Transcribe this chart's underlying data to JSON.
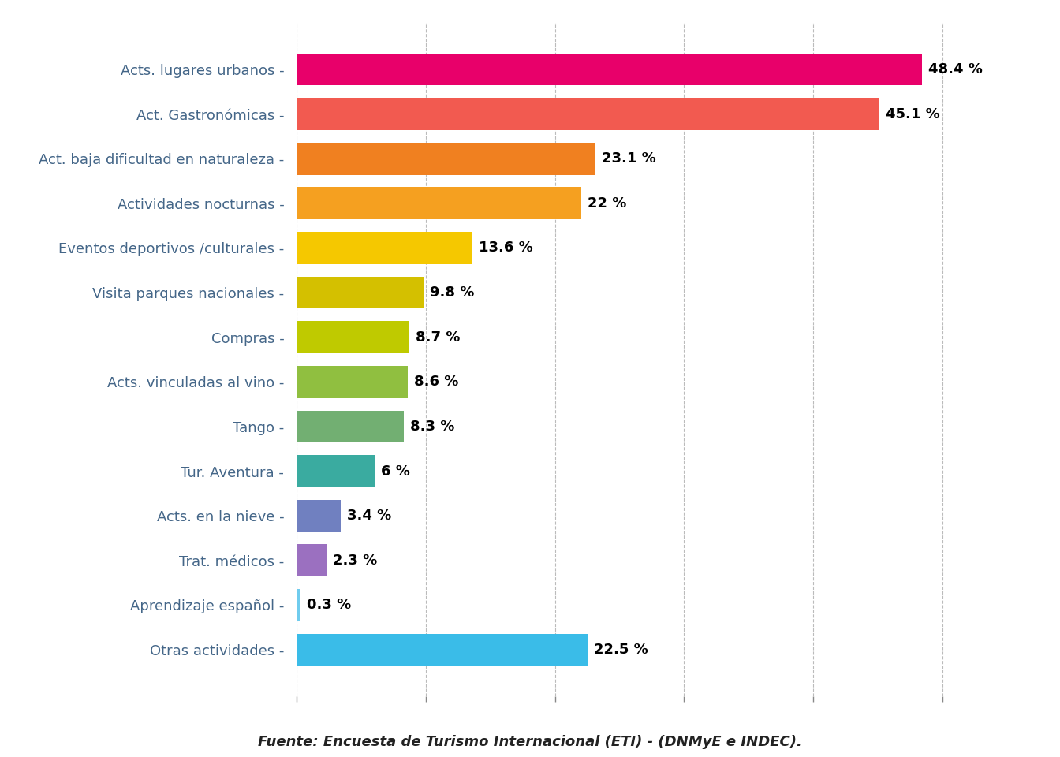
{
  "categories": [
    "Acts. lugares urbanos",
    "Act. Gastronómicas",
    "Act. baja dificultad en naturaleza",
    "Actividades nocturnas",
    "Eventos deportivos /culturales",
    "Visita parques nacionales",
    "Compras",
    "Acts. vinculadas al vino",
    "Tango",
    "Tur. Aventura",
    "Acts. en la nieve",
    "Trat. médicos",
    "Aprendizaje español",
    "Otras actividades"
  ],
  "values": [
    48.4,
    45.1,
    23.1,
    22.0,
    13.6,
    9.8,
    8.7,
    8.6,
    8.3,
    6.0,
    3.4,
    2.3,
    0.3,
    22.5
  ],
  "labels": [
    "48.4 %",
    "45.1 %",
    "23.1 %",
    "22 %",
    "13.6 %",
    "9.8 %",
    "8.7 %",
    "8.6 %",
    "8.3 %",
    "6 %",
    "3.4 %",
    "2.3 %",
    "0.3 %",
    "22.5 %"
  ],
  "colors": [
    "#E8006A",
    "#F25A50",
    "#F08020",
    "#F5A020",
    "#F5C800",
    "#D4C000",
    "#BFCA00",
    "#90BF40",
    "#72AF72",
    "#3AABA0",
    "#7080C0",
    "#9B70C0",
    "#70CCEE",
    "#3ABCE8"
  ],
  "xlim": [
    0,
    55
  ],
  "footer": "Fuente: Encuesta de Turismo Internacional (ETI) - (DNMyE e INDEC).",
  "background_color": "#ffffff",
  "grid_color": "#bbbbbb",
  "label_fontsize": 13,
  "value_fontsize": 13,
  "footer_fontsize": 13,
  "bar_height": 0.72
}
